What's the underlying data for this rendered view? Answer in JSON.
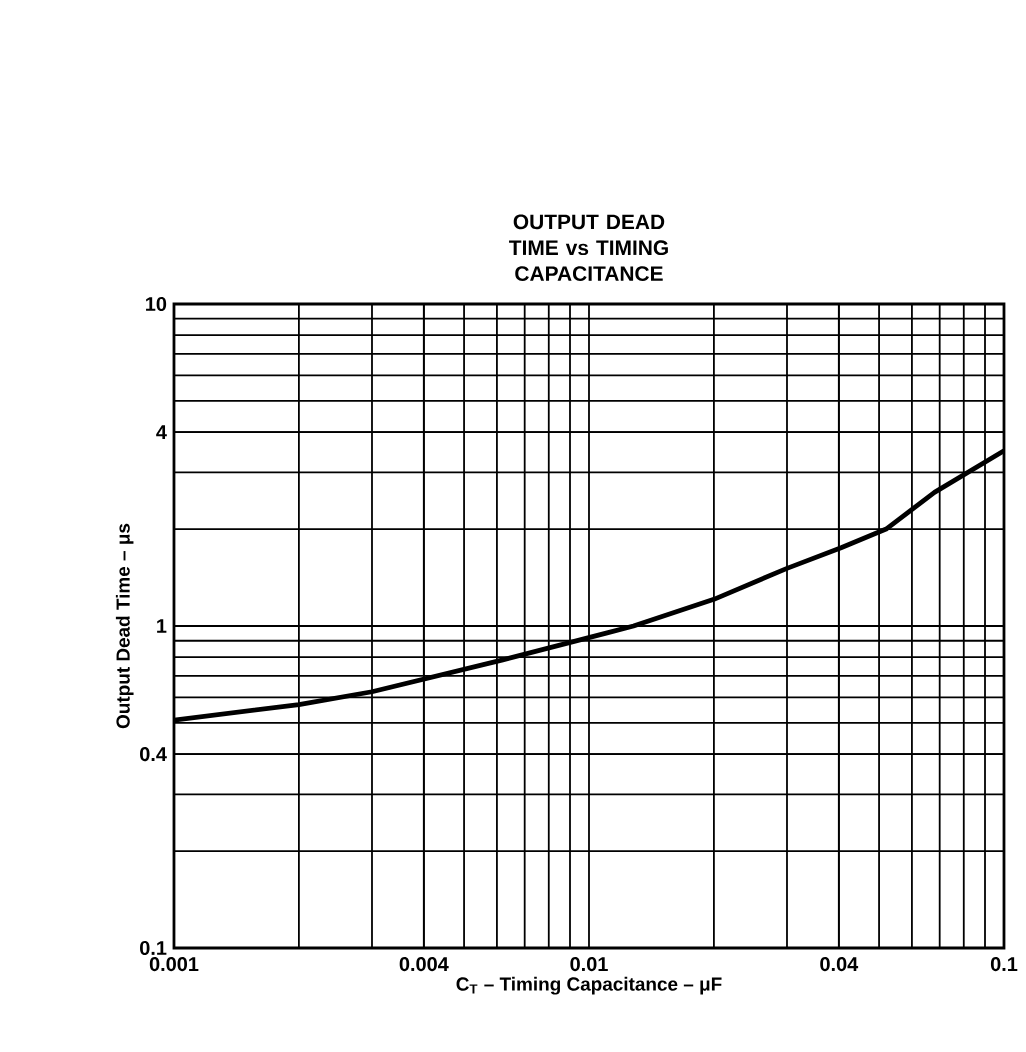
{
  "chart_data": {
    "type": "line",
    "title": "OUTPUT DEAD TIME vs TIMING CAPACITANCE",
    "xlabel": "C$_{T}$ – Timing Capacitance – μF",
    "ylabel": "Output Dead Time – μs",
    "log": "xy",
    "grid": true,
    "marker": "none",
    "line_style": "solid",
    "xlim": [
      0.001,
      0.1
    ],
    "ylim": [
      0.1,
      10
    ],
    "xticks": [
      0.001,
      0.004,
      0.01,
      0.04,
      0.1
    ],
    "yticks": [
      0.1,
      0.4,
      1,
      4,
      10
    ],
    "series": [
      {
        "color": "#000000",
        "x": [
          0.001,
          0.002,
          0.003,
          0.0062,
          0.011,
          0.0128,
          0.02,
          0.03,
          0.0405,
          0.052,
          0.068,
          0.1
        ],
        "values": [
          0.51,
          0.57,
          0.625,
          0.785,
          0.95,
          1.0,
          1.21,
          1.51,
          1.75,
          2.0,
          2.6,
          3.5
        ]
      }
    ]
  }
}
